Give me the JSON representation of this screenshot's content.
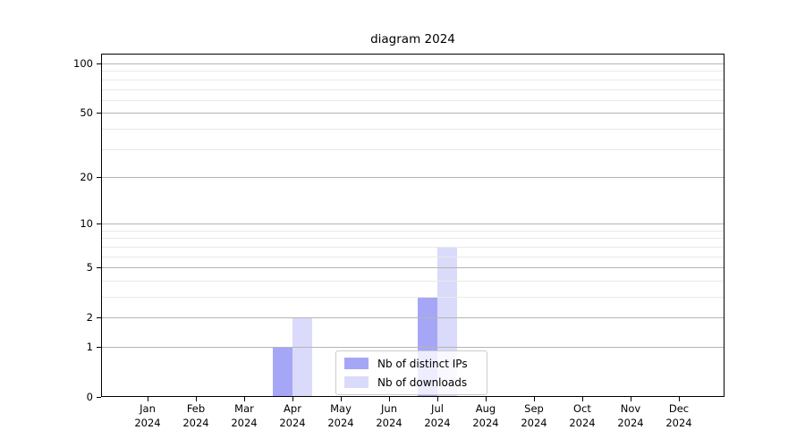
{
  "chart_data": {
    "type": "bar",
    "title": "diagram 2024",
    "x": {
      "categories": [
        "Jan",
        "Feb",
        "Mar",
        "Apr",
        "May",
        "Jun",
        "Jul",
        "Aug",
        "Sep",
        "Oct",
        "Nov",
        "Dec"
      ],
      "year": "2024"
    },
    "series": [
      {
        "name": "Nb of distinct IPs",
        "color": "#a6a6f7",
        "values": [
          0,
          0,
          0,
          1,
          0,
          0,
          3,
          0,
          0,
          0,
          0,
          0
        ]
      },
      {
        "name": "Nb of downloads",
        "color": "#dadafa",
        "values": [
          0,
          0,
          0,
          2,
          0,
          0,
          7,
          0,
          0,
          0,
          0,
          0
        ]
      }
    ],
    "y_axis": {
      "scale": "log1p",
      "tick_values": [
        100,
        50,
        20,
        10,
        5,
        2,
        1,
        0
      ],
      "tick_labels": [
        "100",
        "50",
        "20",
        "10",
        "5",
        "2",
        "1",
        "0"
      ],
      "minor_tick_values": [
        3,
        4,
        6,
        7,
        8,
        9,
        30,
        40,
        60,
        70,
        80,
        90
      ],
      "top_value": 115
    },
    "grid": {
      "horizontal_only": true,
      "major_color": "#b4b4b4",
      "minor_color": "#e9e9e9"
    },
    "legend": {
      "location": "lower center inside plot",
      "entries": [
        "Nb of distinct IPs",
        "Nb of downloads"
      ]
    }
  }
}
